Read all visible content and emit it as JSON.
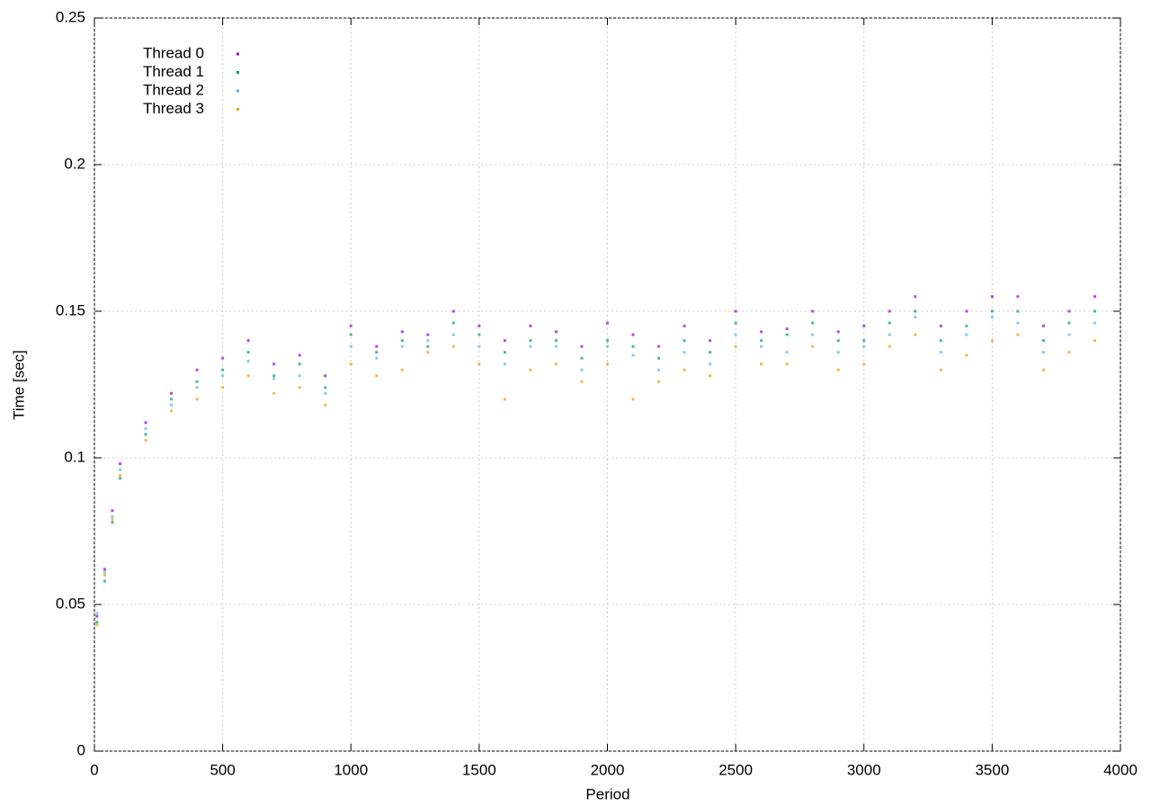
{
  "chart_data": {
    "type": "scatter",
    "xlabel": "Period",
    "ylabel": "Time [sec]",
    "x": [
      10,
      40,
      70,
      100,
      200,
      300,
      400,
      500,
      600,
      700,
      800,
      900,
      1000,
      1100,
      1200,
      1300,
      1400,
      1500,
      1600,
      1700,
      1800,
      1900,
      2000,
      2100,
      2200,
      2300,
      2400,
      2500,
      2600,
      2700,
      2800,
      2900,
      3000,
      3100,
      3200,
      3300,
      3400,
      3500,
      3600,
      3700,
      3800,
      3900
    ],
    "series": [
      {
        "name": "Thread 0",
        "color": "#9400d3",
        "values": [
          0.046,
          0.062,
          0.082,
          0.098,
          0.112,
          0.122,
          0.13,
          0.134,
          0.14,
          0.132,
          0.135,
          0.128,
          0.145,
          0.138,
          0.143,
          0.142,
          0.15,
          0.145,
          0.14,
          0.145,
          0.143,
          0.138,
          0.146,
          0.142,
          0.138,
          0.145,
          0.14,
          0.15,
          0.143,
          0.144,
          0.15,
          0.143,
          0.145,
          0.15,
          0.155,
          0.145,
          0.15,
          0.155,
          0.155,
          0.145,
          0.15,
          0.155
        ]
      },
      {
        "name": "Thread 1",
        "color": "#009e73",
        "values": [
          0.044,
          0.058,
          0.078,
          0.093,
          0.108,
          0.12,
          0.126,
          0.13,
          0.136,
          0.128,
          0.132,
          0.124,
          0.142,
          0.136,
          0.14,
          0.138,
          0.146,
          0.142,
          0.136,
          0.14,
          0.14,
          0.134,
          0.14,
          0.138,
          0.134,
          0.14,
          0.136,
          0.146,
          0.14,
          0.142,
          0.146,
          0.14,
          0.14,
          0.146,
          0.15,
          0.14,
          0.145,
          0.15,
          0.15,
          0.14,
          0.146,
          0.15
        ]
      },
      {
        "name": "Thread 2",
        "color": "#56b4e9",
        "values": [
          0.047,
          0.061,
          0.08,
          0.096,
          0.11,
          0.118,
          0.124,
          0.128,
          0.133,
          0.127,
          0.128,
          0.122,
          0.138,
          0.134,
          0.138,
          0.14,
          0.142,
          0.138,
          0.132,
          0.138,
          0.138,
          0.13,
          0.138,
          0.135,
          0.13,
          0.136,
          0.132,
          0.142,
          0.138,
          0.136,
          0.142,
          0.136,
          0.138,
          0.142,
          0.148,
          0.136,
          0.142,
          0.148,
          0.146,
          0.136,
          0.142,
          0.146
        ]
      },
      {
        "name": "Thread 3",
        "color": "#e69f00",
        "values": [
          0.043,
          0.06,
          0.079,
          0.094,
          0.106,
          0.116,
          0.12,
          0.124,
          0.128,
          0.122,
          0.124,
          0.118,
          0.132,
          0.128,
          0.13,
          0.136,
          0.138,
          0.132,
          0.12,
          0.13,
          0.132,
          0.126,
          0.132,
          0.12,
          0.126,
          0.13,
          0.128,
          0.138,
          0.132,
          0.132,
          0.138,
          0.13,
          0.132,
          0.138,
          0.142,
          0.13,
          0.135,
          0.14,
          0.142,
          0.13,
          0.136,
          0.14
        ]
      }
    ],
    "xlim": [
      0,
      4000
    ],
    "xticks": [
      0,
      500,
      1000,
      1500,
      2000,
      2500,
      3000,
      3500,
      4000
    ],
    "ylim": [
      0,
      0.25
    ],
    "yticks": [
      0,
      0.05,
      0.1,
      0.15,
      0.2,
      0.25
    ],
    "grid": true,
    "legend": "top-left"
  }
}
